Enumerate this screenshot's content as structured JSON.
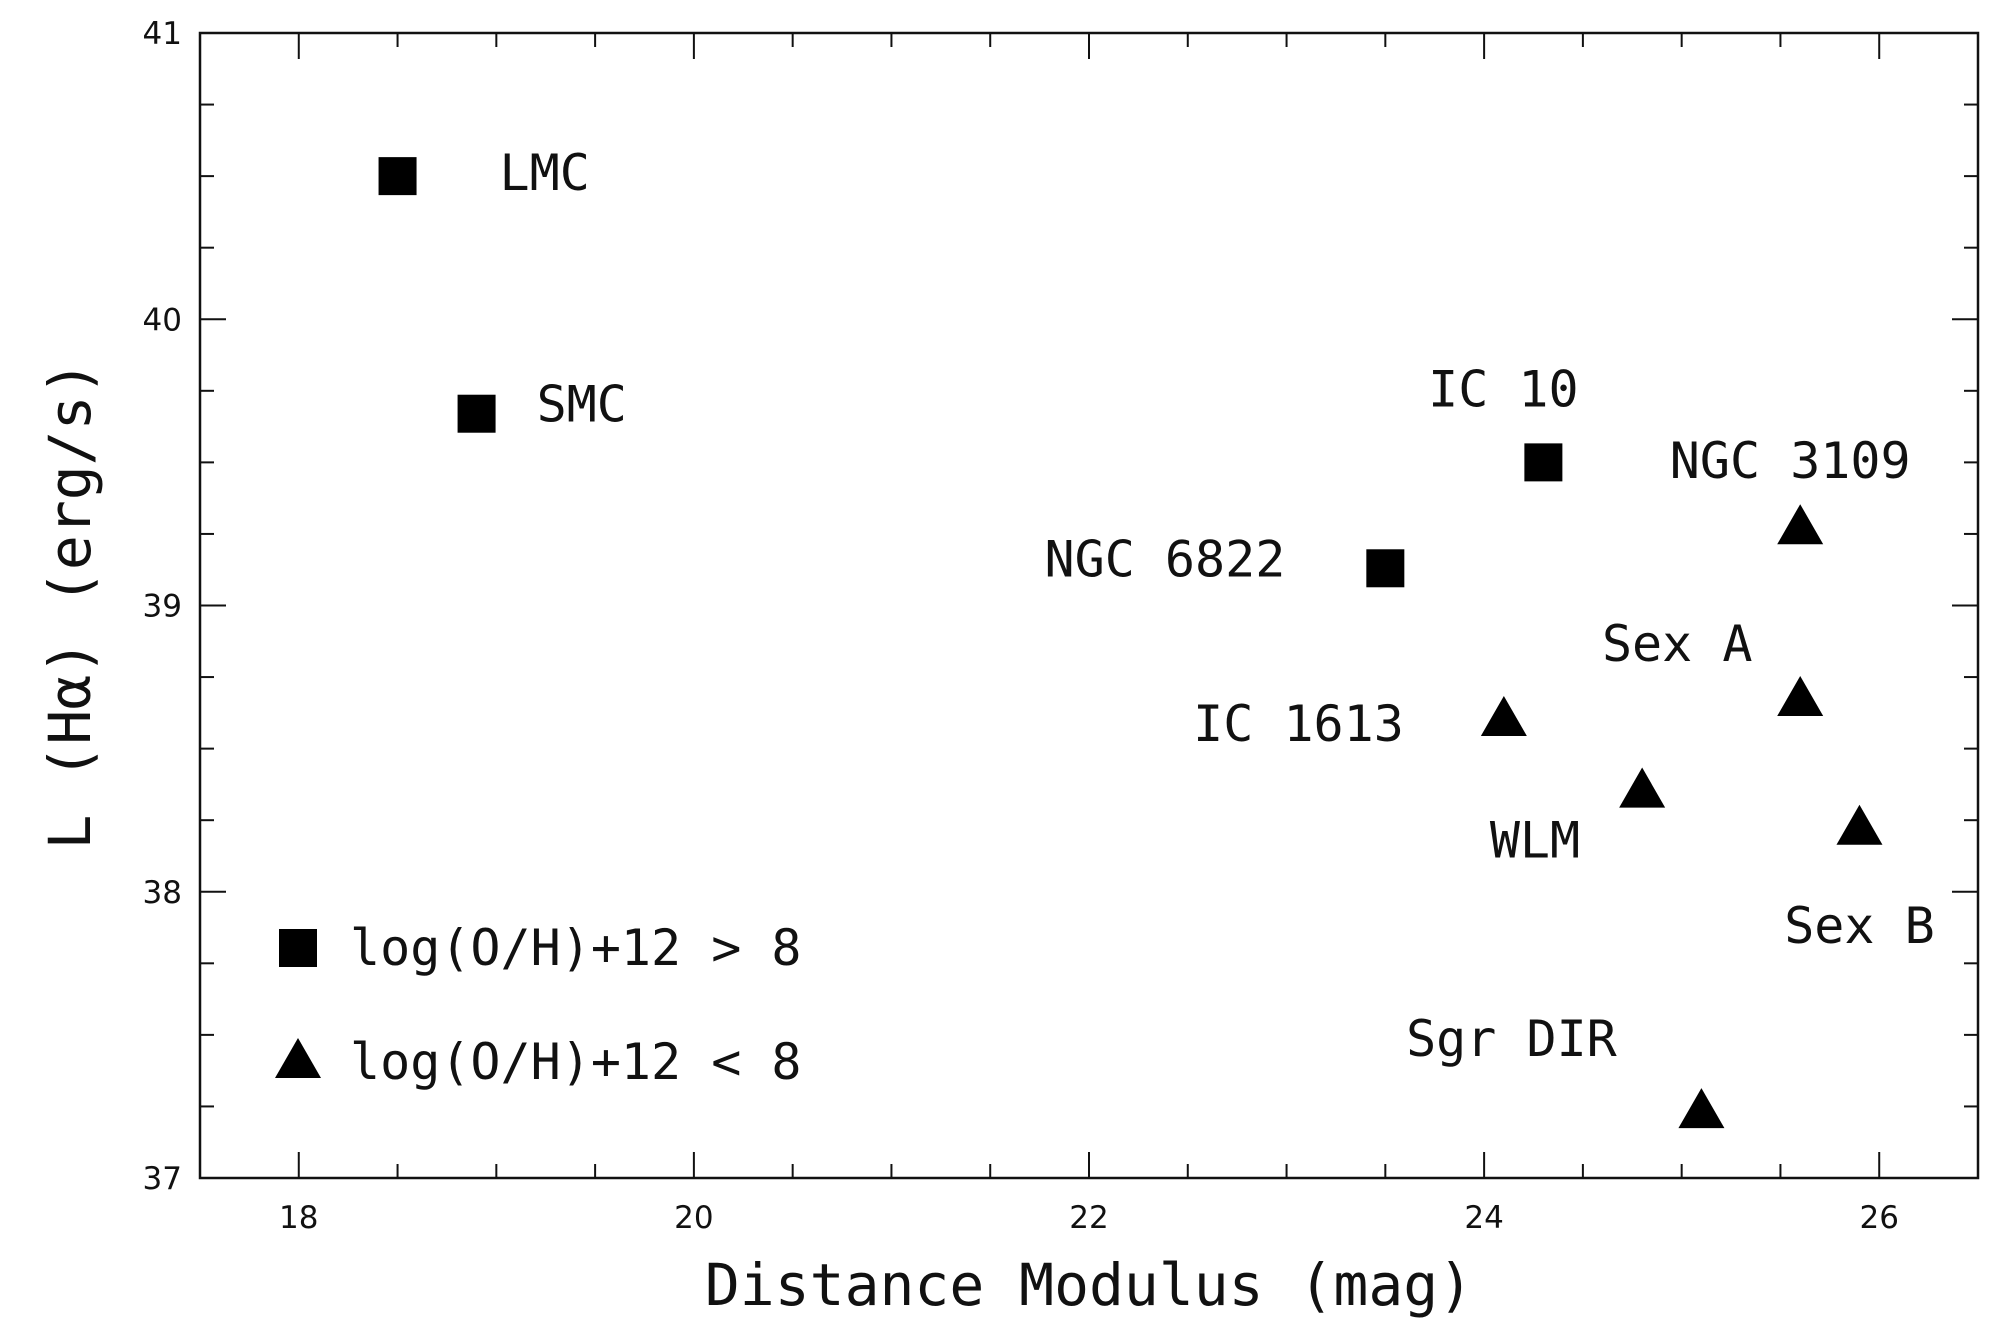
{
  "chart_data": {
    "type": "scatter",
    "xlabel": "Distance Modulus (mag)",
    "ylabel": "L (Hα) (erg/s)",
    "xlim": [
      17.5,
      26.5
    ],
    "ylim": [
      37,
      41
    ],
    "x_ticks": [
      18,
      20,
      22,
      24,
      26
    ],
    "y_ticks": [
      37,
      38,
      39,
      40,
      41
    ],
    "x_minor_step": 0.5,
    "y_minor_step": 0.25,
    "grid": false,
    "legend_position": "lower-left",
    "series": [
      {
        "name": "log(O/H)+12 > 8",
        "marker": "square",
        "color": "#000000",
        "points": [
          {
            "label": "LMC",
            "x": 18.5,
            "y": 40.5
          },
          {
            "label": "SMC",
            "x": 18.9,
            "y": 39.67
          },
          {
            "label": "IC 10",
            "x": 24.3,
            "y": 39.5
          },
          {
            "label": "NGC 6822",
            "x": 23.5,
            "y": 39.13
          }
        ]
      },
      {
        "name": "log(O/H)+12 < 8",
        "marker": "triangle",
        "color": "#000000",
        "points": [
          {
            "label": "NGC 3109",
            "x": 25.6,
            "y": 39.27
          },
          {
            "label": "Sex A",
            "x": 25.6,
            "y": 38.67
          },
          {
            "label": "IC 1613",
            "x": 24.1,
            "y": 38.6
          },
          {
            "label": "WLM",
            "x": 24.8,
            "y": 38.35
          },
          {
            "label": "Sex B",
            "x": 25.9,
            "y": 38.22
          },
          {
            "label": "Sgr DIR",
            "x": 25.1,
            "y": 37.23
          }
        ]
      }
    ]
  }
}
